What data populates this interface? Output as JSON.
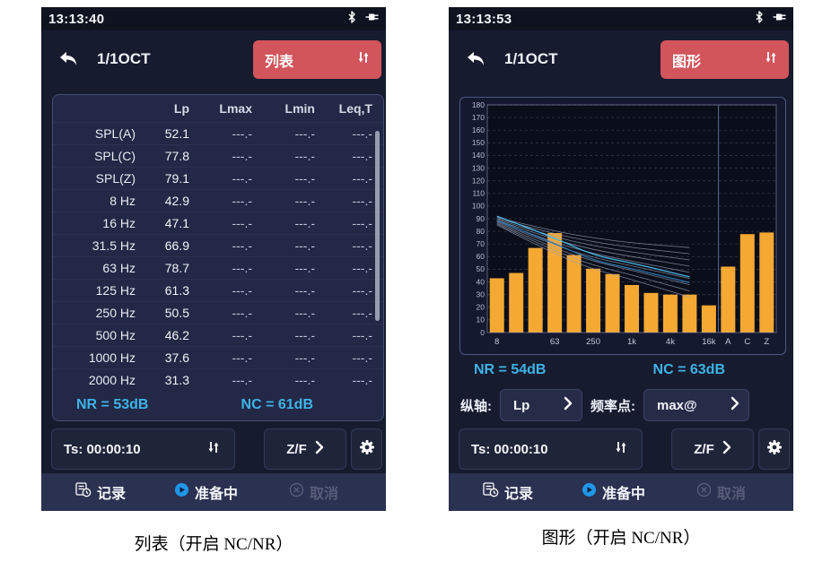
{
  "colors": {
    "accent_red": "#d2555c",
    "accent_cyan": "#3fb3e6",
    "bar_orange": "#f5a832",
    "screen_bg": "#161b2e"
  },
  "left_screen": {
    "time": "13:13:40",
    "mode": "1/1OCT",
    "view_button": "列表",
    "table": {
      "headers": [
        "",
        "Lp",
        "Lmax",
        "Lmin",
        "Leq,T"
      ],
      "rows": [
        [
          "SPL(A)",
          "52.1",
          "---.-",
          "---.-",
          "---.-"
        ],
        [
          "SPL(C)",
          "77.8",
          "---.-",
          "---.-",
          "---.-"
        ],
        [
          "SPL(Z)",
          "79.1",
          "---.-",
          "---.-",
          "---.-"
        ],
        [
          "8 Hz",
          "42.9",
          "---.-",
          "---.-",
          "---.-"
        ],
        [
          "16 Hz",
          "47.1",
          "---.-",
          "---.-",
          "---.-"
        ],
        [
          "31.5 Hz",
          "66.9",
          "---.-",
          "---.-",
          "---.-"
        ],
        [
          "63 Hz",
          "78.7",
          "---.-",
          "---.-",
          "---.-"
        ],
        [
          "125 Hz",
          "61.3",
          "---.-",
          "---.-",
          "---.-"
        ],
        [
          "250 Hz",
          "50.5",
          "---.-",
          "---.-",
          "---.-"
        ],
        [
          "500 Hz",
          "46.2",
          "---.-",
          "---.-",
          "---.-"
        ],
        [
          "1000 Hz",
          "37.6",
          "---.-",
          "---.-",
          "---.-"
        ],
        [
          "2000 Hz",
          "31.3",
          "---.-",
          "---.-",
          "---.-"
        ]
      ]
    },
    "nr": "NR = 53dB",
    "nc": "NC = 61dB",
    "ts": "Ts: 00:00:10",
    "zf": "Z/F",
    "footer": {
      "record": "记录",
      "state": "准备中",
      "cancel": "取消"
    },
    "caption": "列表（开启 NC/NR）"
  },
  "right_screen": {
    "time": "13:13:53",
    "mode": "1/1OCT",
    "view_button": "图形",
    "nr": "NR = 54dB",
    "nc": "NC = 63dB",
    "controls": {
      "y_axis_label": "纵轴:",
      "y_axis_value": "Lp",
      "freq_point_label": "频率点:",
      "freq_point_value": "max@"
    },
    "ts": "Ts: 00:00:10",
    "zf": "Z/F",
    "footer": {
      "record": "记录",
      "state": "准备中",
      "cancel": "取消"
    },
    "caption": "图形（开启 NC/NR）"
  },
  "chart_data": {
    "type": "bar",
    "title": "1/1 octave band spectrum (Lp, dB) with NC/NR reference curves",
    "categories": [
      "8",
      "16",
      "31.5",
      "63",
      "125",
      "250",
      "500",
      "1k",
      "2k",
      "4k",
      "8k",
      "16k",
      "A",
      "C",
      "Z"
    ],
    "x_tick_labels": [
      "8",
      "",
      "",
      "63",
      "",
      "250",
      "",
      "1k",
      "",
      "4k",
      "",
      "16k",
      "A",
      "C",
      "Z"
    ],
    "values": [
      42.9,
      47.1,
      66.9,
      78.7,
      61.3,
      50.5,
      46.2,
      37.6,
      31.3,
      30.0,
      30.0,
      21.5,
      52.1,
      77.8,
      79.1
    ],
    "ylim": [
      0,
      180
    ],
    "y_tick_step": 10,
    "grid": true,
    "legend": "none",
    "bar_color": "#f5a832",
    "separator_after_index": 11,
    "reference_curves": {
      "anchor_indices": [
        0,
        3,
        5,
        7,
        10
      ],
      "gray_color": "#9aa3b8",
      "gray_curves": [
        [
          85,
          62,
          50,
          42,
          28
        ],
        [
          85.8,
          64.3,
          53.1,
          45.6,
          32.9
        ],
        [
          86.5,
          66.5,
          56.2,
          49.2,
          37.8
        ],
        [
          87.3,
          68.8,
          59.3,
          52.8,
          42.7
        ],
        [
          88,
          71,
          62.4,
          56.4,
          47.6
        ],
        [
          88.8,
          73.3,
          65.5,
          60,
          52.5
        ],
        [
          89.5,
          75.5,
          68.6,
          63.6,
          57.4
        ],
        [
          90.3,
          77.8,
          71.7,
          67.2,
          62.3
        ],
        [
          91,
          80,
          74.8,
          70.8,
          67.2
        ]
      ],
      "highlight_curves": [
        {
          "color": "#49b9e8",
          "points": [
            92,
            75,
            61,
            55,
            44
          ]
        },
        {
          "color": "#2f74ab",
          "points": [
            88.5,
            70.5,
            57,
            50.5,
            39.5
          ]
        }
      ]
    }
  }
}
